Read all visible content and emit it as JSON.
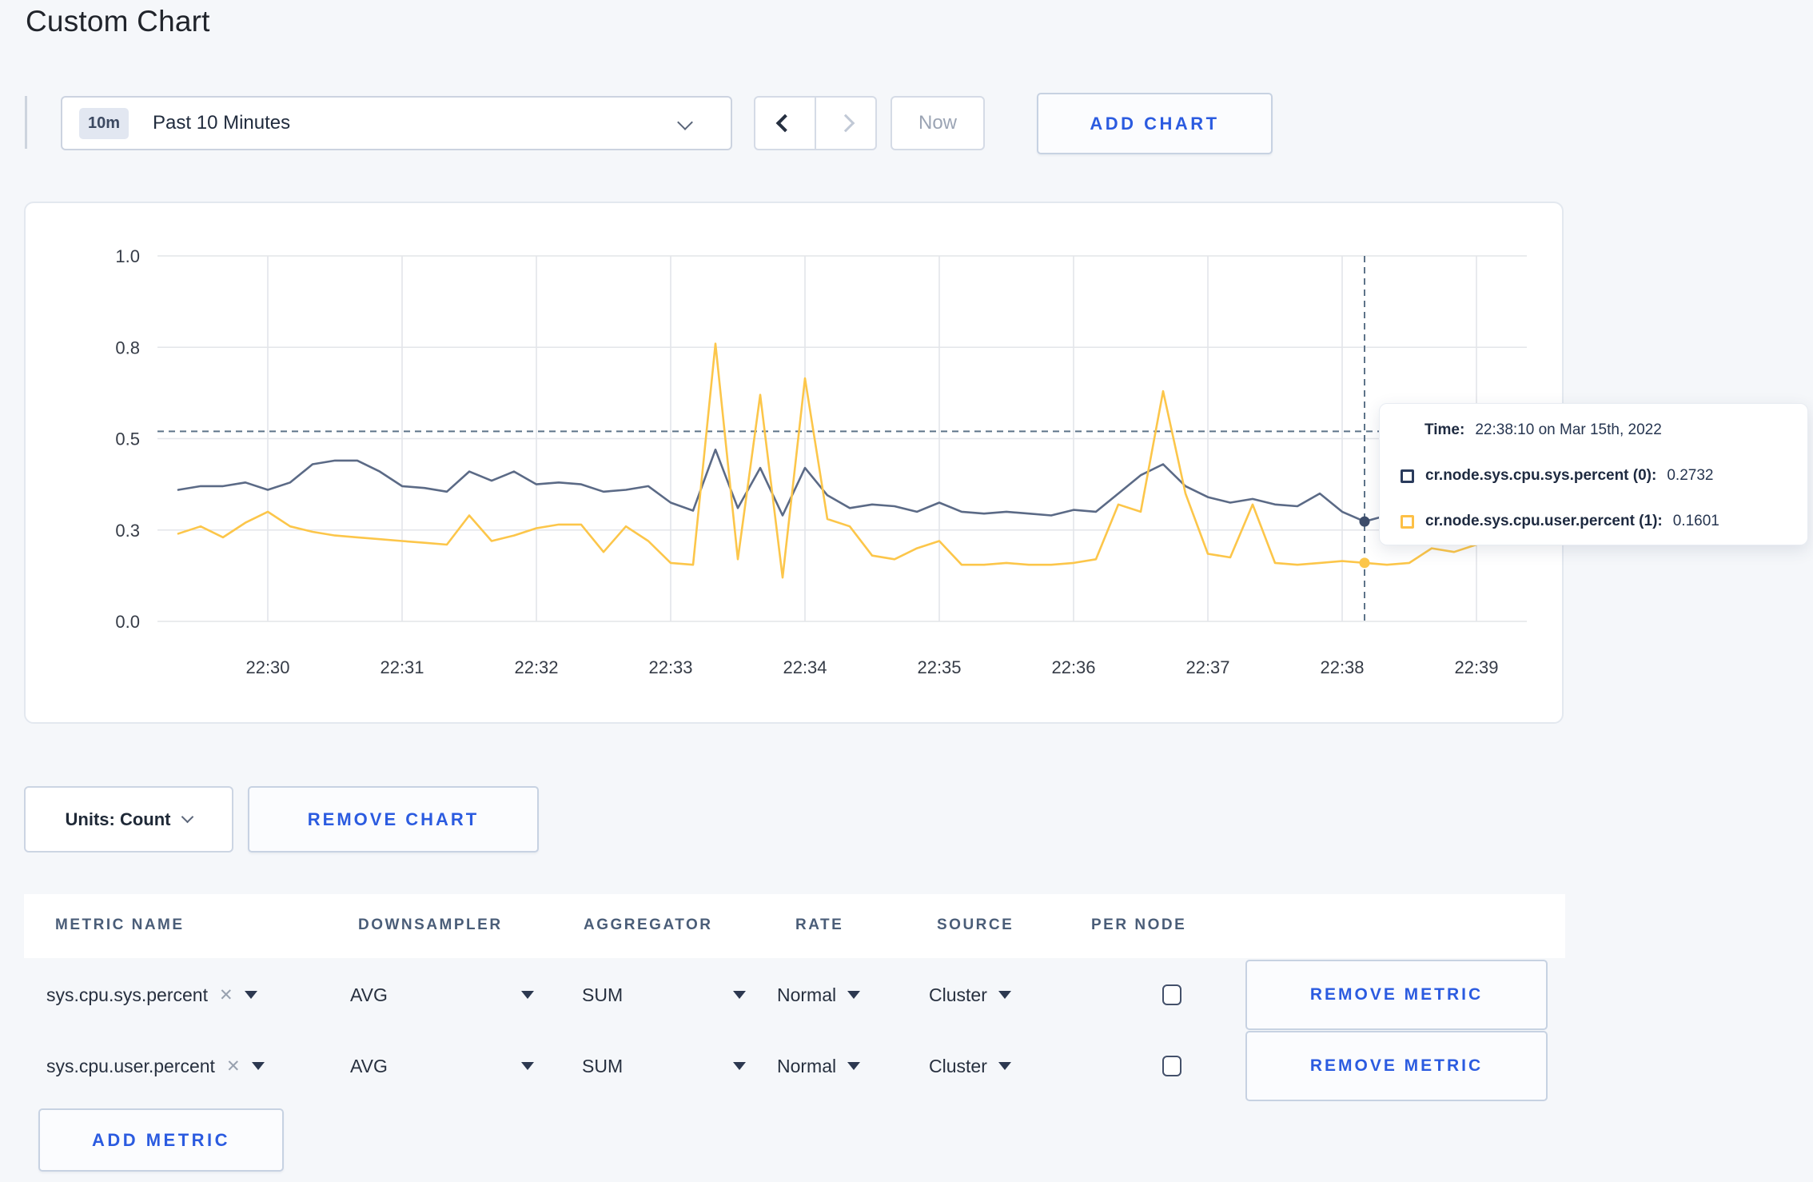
{
  "page": {
    "title": "Custom Chart"
  },
  "toolbar": {
    "time_range": {
      "badge": "10m",
      "label": "Past 10 Minutes"
    },
    "now_label": "Now",
    "add_chart_label": "ADD CHART"
  },
  "chart_data": {
    "type": "line",
    "x_start": "22:29:20",
    "interval_seconds": 10,
    "ylim": [
      0,
      1
    ],
    "grid": true,
    "x_axis": {
      "ticks": [
        "22:30",
        "22:31",
        "22:32",
        "22:33",
        "22:34",
        "22:35",
        "22:36",
        "22:37",
        "22:38",
        "22:39"
      ]
    },
    "y_axis": {
      "ticks": [
        {
          "label": "0.0",
          "value": 0
        },
        {
          "label": "0.3",
          "value": 0.25
        },
        {
          "label": "0.5",
          "value": 0.5
        },
        {
          "label": "0.8",
          "value": 0.75
        },
        {
          "label": "1.0",
          "value": 1
        }
      ]
    },
    "series": [
      {
        "name": "cr.node.sys.cpu.sys.percent",
        "color": "#5b6a86",
        "values": [
          0.36,
          0.37,
          0.37,
          0.38,
          0.36,
          0.38,
          0.43,
          0.44,
          0.44,
          0.41,
          0.37,
          0.365,
          0.355,
          0.41,
          0.385,
          0.41,
          0.375,
          0.38,
          0.375,
          0.355,
          0.36,
          0.37,
          0.325,
          0.303,
          0.47,
          0.31,
          0.42,
          0.29,
          0.42,
          0.345,
          0.31,
          0.32,
          0.315,
          0.3,
          0.325,
          0.3,
          0.295,
          0.3,
          0.295,
          0.29,
          0.305,
          0.3,
          0.35,
          0.4,
          0.43,
          0.37,
          0.34,
          0.325,
          0.335,
          0.32,
          0.315,
          0.35,
          0.3,
          0.2732,
          0.29,
          0.3,
          0.3,
          0.295,
          0.3,
          0.3,
          0.295
        ]
      },
      {
        "name": "cr.node.sys.cpu.user.percent",
        "color": "#fcc64a",
        "values": [
          0.24,
          0.26,
          0.23,
          0.27,
          0.3,
          0.26,
          0.245,
          0.235,
          0.23,
          0.225,
          0.22,
          0.215,
          0.21,
          0.29,
          0.22,
          0.235,
          0.255,
          0.265,
          0.265,
          0.19,
          0.26,
          0.22,
          0.16,
          0.155,
          0.76,
          0.17,
          0.62,
          0.12,
          0.665,
          0.28,
          0.26,
          0.18,
          0.17,
          0.2,
          0.22,
          0.155,
          0.155,
          0.16,
          0.155,
          0.155,
          0.16,
          0.17,
          0.32,
          0.3,
          0.63,
          0.35,
          0.185,
          0.175,
          0.32,
          0.16,
          0.155,
          0.16,
          0.165,
          0.1601,
          0.155,
          0.16,
          0.2,
          0.19,
          0.21,
          0.25,
          0.27
        ]
      }
    ],
    "crosshair": {
      "time": "22:38:10",
      "index": 53,
      "hline_value": 0.52
    },
    "legend_position": "tooltip"
  },
  "tooltip": {
    "time_label": "Time:",
    "time_value": "22:38:10 on Mar 15th, 2022",
    "series": [
      {
        "name": "cr.node.sys.cpu.sys.percent (0):",
        "value": "0.2732",
        "color": "#2a3b5c"
      },
      {
        "name": "cr.node.sys.cpu.user.percent (1):",
        "value": "0.1601",
        "color": "#fdc046"
      }
    ]
  },
  "chart_footer": {
    "units_label": "Units: Count",
    "remove_chart_label": "REMOVE CHART"
  },
  "metrics_table": {
    "headers": [
      "METRIC NAME",
      "DOWNSAMPLER",
      "AGGREGATOR",
      "RATE",
      "SOURCE",
      "PER NODE"
    ],
    "clear_icon": "✕",
    "rows": [
      {
        "metric": "sys.cpu.sys.percent",
        "downsampler": "AVG",
        "aggregator": "SUM",
        "rate": "Normal",
        "source": "Cluster",
        "per_node_checked": false,
        "remove_label": "REMOVE METRIC"
      },
      {
        "metric": "sys.cpu.user.percent",
        "downsampler": "AVG",
        "aggregator": "SUM",
        "rate": "Normal",
        "source": "Cluster",
        "per_node_checked": false,
        "remove_label": "REMOVE METRIC"
      }
    ],
    "add_metric_label": "ADD METRIC"
  },
  "colors": {
    "accent_blue": "#2b5be0",
    "page_background": "#f5f7fa",
    "gridline": "#e3e5e9",
    "crosshair": "#5d7389",
    "axis_text": "#363c47"
  }
}
